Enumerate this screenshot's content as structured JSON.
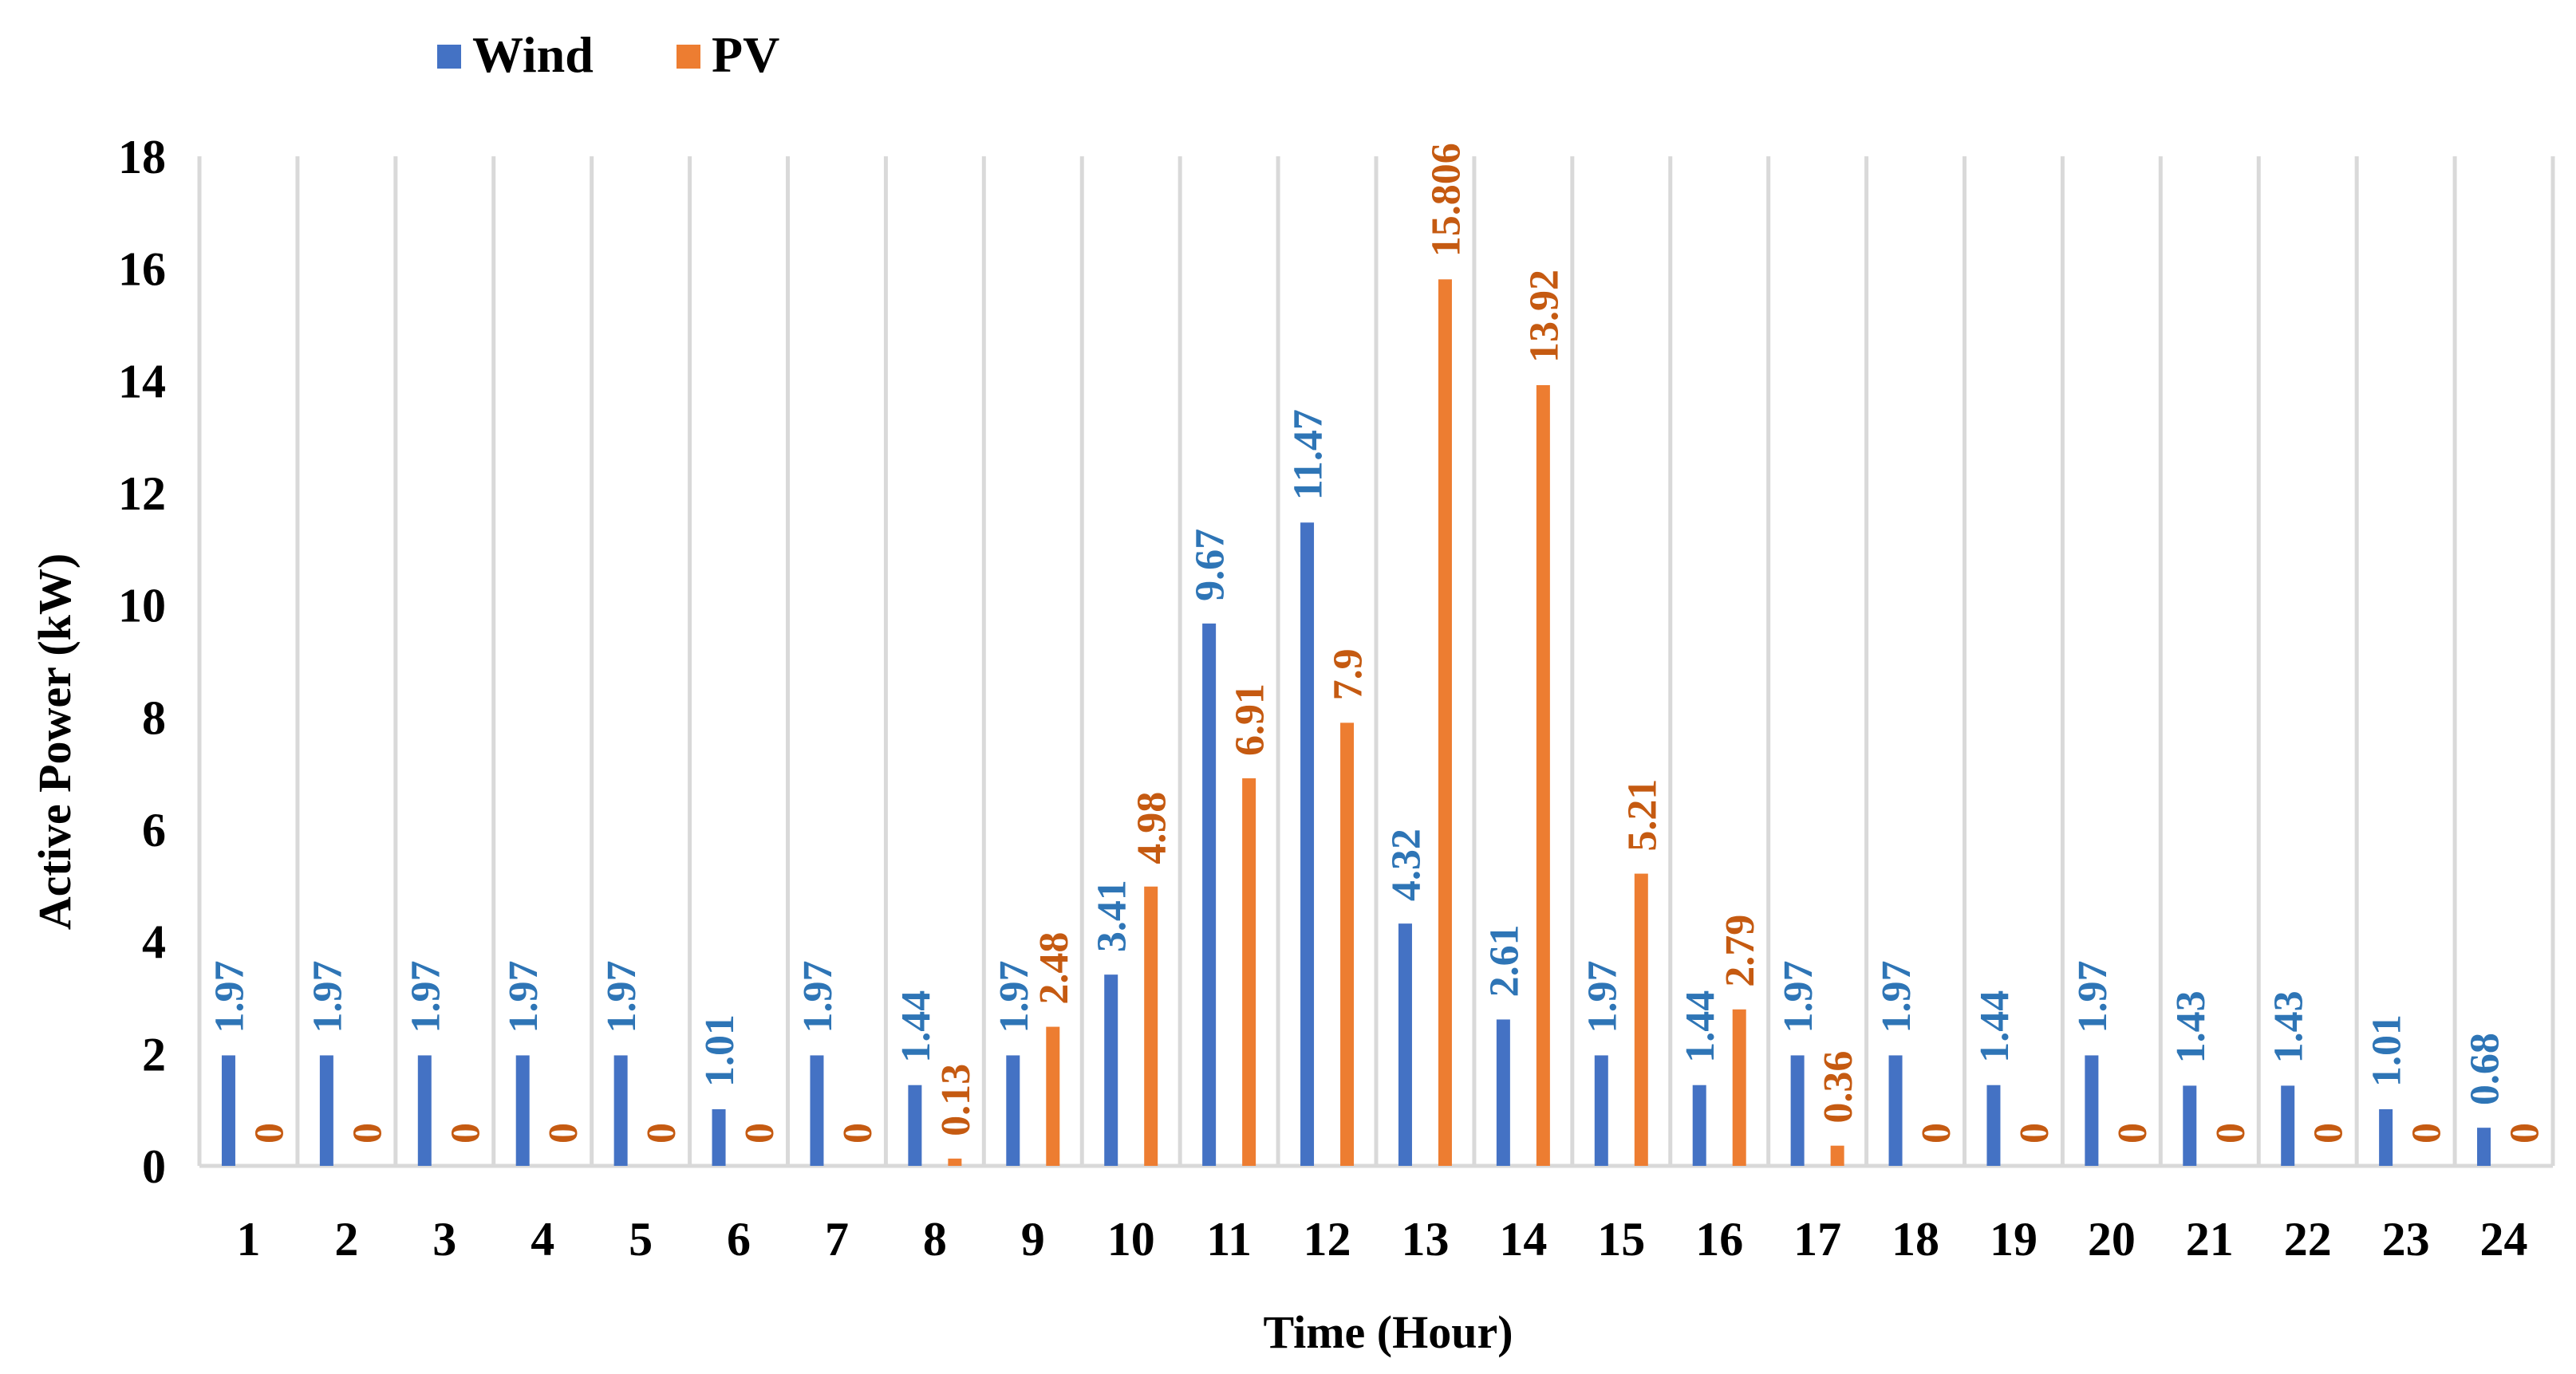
{
  "chart_data": {
    "type": "bar",
    "xlabel": "Time (Hour)",
    "ylabel": "Active Power (kW)",
    "ylim": [
      0,
      18
    ],
    "yticks": [
      "0",
      "2",
      "4",
      "6",
      "8",
      "10",
      "12",
      "14",
      "16",
      "18"
    ],
    "grid": "vertical gridlines between categories",
    "legend_position": "top-left",
    "categories": [
      "1",
      "2",
      "3",
      "4",
      "5",
      "6",
      "7",
      "8",
      "9",
      "10",
      "11",
      "12",
      "13",
      "14",
      "15",
      "16",
      "17",
      "18",
      "19",
      "20",
      "21",
      "22",
      "23",
      "24"
    ],
    "series": [
      {
        "name": "Wind",
        "color": "#4472C4",
        "label_color": "#2E75B6",
        "values": [
          1.97,
          1.97,
          1.97,
          1.97,
          1.97,
          1.01,
          1.97,
          1.44,
          1.97,
          3.41,
          9.67,
          11.47,
          4.32,
          2.61,
          1.97,
          1.44,
          1.97,
          1.97,
          1.44,
          1.97,
          1.43,
          1.43,
          1.01,
          0.68
        ],
        "labels": [
          "1.97",
          "1.97",
          "1.97",
          "1.97",
          "1.97",
          "1.01",
          "1.97",
          "1.44",
          "1.97",
          "3.41",
          "9.67",
          "11.47",
          "4.32",
          "2.61",
          "1.97",
          "1.44",
          "1.97",
          "1.97",
          "1.44",
          "1.97",
          "1.43",
          "1.43",
          "1.01",
          "0.68"
        ]
      },
      {
        "name": "PV",
        "color": "#ED7D31",
        "label_color": "#C55A11",
        "values": [
          0,
          0,
          0,
          0,
          0,
          0,
          0,
          0.13,
          2.48,
          4.98,
          6.91,
          7.9,
          15.806,
          13.92,
          5.21,
          2.79,
          0.36,
          0,
          0,
          0,
          0,
          0,
          0,
          0
        ],
        "labels": [
          "0",
          "0",
          "0",
          "0",
          "0",
          "0",
          "0",
          "0.13",
          "2.48",
          "4.98",
          "6.91",
          "7.9",
          "15.806",
          "13.92",
          "5.21",
          "2.79",
          "0.36",
          "0",
          "0",
          "0",
          "0",
          "0",
          "0",
          "0"
        ]
      }
    ]
  }
}
